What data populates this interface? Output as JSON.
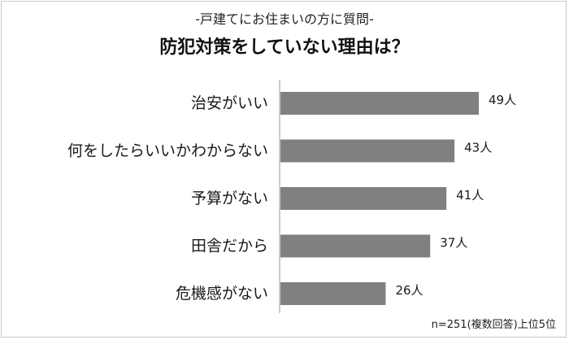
{
  "header": {
    "subtitle": "-戸建てにお住まいの方に質問-",
    "title": "防犯対策をしていない理由は？"
  },
  "note": "n=251(複数回答)上位5位",
  "colors": {
    "bar": "#808080",
    "axis": "#999999",
    "text": "#1a1a1a"
  },
  "chart_data": {
    "type": "bar",
    "orientation": "horizontal",
    "title": "防犯対策をしていない理由は？",
    "subtitle": "-戸建てにお住まいの方に質問-",
    "categories": [
      "治安がいい",
      "何をしたらいいかわからない",
      "予算がない",
      "田舎だから",
      "危機感がない"
    ],
    "values": [
      49,
      43,
      41,
      37,
      26
    ],
    "value_labels": [
      "49人",
      "43人",
      "41人",
      "37人",
      "26人"
    ],
    "unit": "人",
    "xlim": [
      0,
      60
    ],
    "grid": false,
    "legend": "none"
  }
}
